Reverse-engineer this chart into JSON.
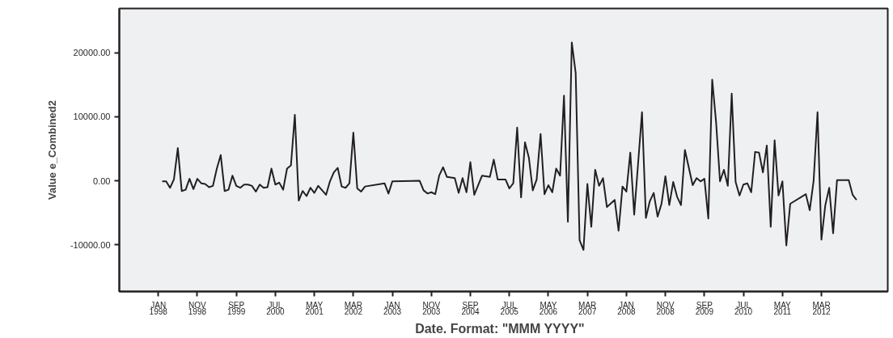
{
  "chart_data": {
    "type": "line",
    "xlabel": "Date.  Format:  \"MMM YYYY\"",
    "ylabel": "Value e_Combined2",
    "x": [
      "1998-02",
      "1998-03",
      "1998-04",
      "1998-05",
      "1998-06",
      "1998-07",
      "1998-08",
      "1998-09",
      "1998-10",
      "1998-11",
      "1998-12",
      "1999-01",
      "1999-02",
      "1999-03",
      "1999-04",
      "1999-05",
      "1999-06",
      "1999-07",
      "1999-08",
      "1999-09",
      "1999-10",
      "1999-11",
      "1999-12",
      "2000-01",
      "2000-02",
      "2000-03",
      "2000-04",
      "2000-05",
      "2000-06",
      "2000-07",
      "2000-08",
      "2000-09",
      "2000-10",
      "2000-11",
      "2000-12",
      "2001-01",
      "2001-02",
      "2001-03",
      "2001-04",
      "2001-05",
      "2001-06",
      "2001-07",
      "2001-08",
      "2001-09",
      "2001-10",
      "2001-11",
      "2001-12",
      "2002-01",
      "2002-02",
      "2002-03",
      "2002-04",
      "2002-05",
      "2002-06",
      "2002-11",
      "2002-12",
      "2003-01",
      "2003-08",
      "2003-09",
      "2003-10",
      "2003-11",
      "2003-12",
      "2004-01",
      "2004-02",
      "2004-03",
      "2004-05",
      "2004-06",
      "2004-07",
      "2004-08",
      "2004-09",
      "2004-10",
      "2004-12",
      "2005-02",
      "2005-03",
      "2005-04",
      "2005-06",
      "2005-07",
      "2005-08",
      "2005-09",
      "2005-10",
      "2005-11",
      "2005-12",
      "2006-01",
      "2006-02",
      "2006-03",
      "2006-04",
      "2006-05",
      "2006-06",
      "2006-07",
      "2006-08",
      "2006-09",
      "2006-10",
      "2006-11",
      "2006-12",
      "2007-01",
      "2007-02",
      "2007-03",
      "2007-04",
      "2007-05",
      "2007-06",
      "2007-07",
      "2007-08",
      "2007-10",
      "2007-11",
      "2007-12",
      "2008-01",
      "2008-02",
      "2008-03",
      "2008-05",
      "2008-06",
      "2008-07",
      "2008-08",
      "2008-09",
      "2008-10",
      "2008-11",
      "2008-12",
      "2009-01",
      "2009-02",
      "2009-03",
      "2009-04",
      "2009-06",
      "2009-07",
      "2009-08",
      "2009-09",
      "2009-10",
      "2009-11",
      "2009-12",
      "2010-01",
      "2010-02",
      "2010-03",
      "2010-04",
      "2010-05",
      "2010-06",
      "2010-07",
      "2010-08",
      "2010-09",
      "2010-10",
      "2010-11",
      "2010-12",
      "2011-01",
      "2011-02",
      "2011-03",
      "2011-04",
      "2011-05",
      "2011-06",
      "2011-07",
      "2011-11",
      "2011-12",
      "2012-01",
      "2012-02",
      "2012-03",
      "2012-04",
      "2012-05",
      "2012-06",
      "2012-07",
      "2012-10",
      "2012-11",
      "2012-12"
    ],
    "values": [
      -100,
      -100,
      -1100,
      200,
      5100,
      -1600,
      -1400,
      300,
      -1300,
      300,
      -400,
      -500,
      -1000,
      -800,
      1900,
      4000,
      -1600,
      -1400,
      800,
      -800,
      -1100,
      -600,
      -600,
      -800,
      -1700,
      -600,
      -1100,
      -1000,
      1900,
      -600,
      -300,
      -1400,
      1900,
      2400,
      10300,
      -3100,
      -1600,
      -2400,
      -1100,
      -1900,
      -800,
      -1500,
      -2200,
      -100,
      1300,
      2000,
      -900,
      -1100,
      -400,
      7500,
      -1200,
      -1700,
      -900,
      -400,
      -2000,
      -100,
      0,
      -1500,
      -2000,
      -1800,
      -2100,
      800,
      2100,
      600,
      400,
      -1900,
      400,
      -1800,
      2900,
      -2200,
      800,
      600,
      3300,
      200,
      200,
      -1200,
      -400,
      8300,
      -2600,
      6000,
      3600,
      -1500,
      200,
      7300,
      -2100,
      -700,
      -1800,
      1900,
      800,
      13300,
      -6400,
      21600,
      16800,
      -9300,
      -10800,
      -500,
      -7200,
      1700,
      -800,
      400,
      -4100,
      -3000,
      -7800,
      -900,
      -1700,
      4400,
      -5300,
      10700,
      -5800,
      -3200,
      -1900,
      -5600,
      -3600,
      700,
      -3800,
      -200,
      -2500,
      -3800,
      4800,
      -700,
      400,
      -100,
      300,
      -5900,
      15800,
      9100,
      -100,
      1700,
      -800,
      13600,
      -200,
      -2300,
      -600,
      -400,
      -1800,
      4500,
      4400,
      1300,
      5500,
      -7200,
      6300,
      -2300,
      -100,
      -10100,
      -3600,
      -2100,
      -4600,
      0,
      10700,
      -9200,
      -3800,
      -1100,
      -8200,
      100,
      100,
      -2200,
      -3000
    ],
    "color": "#231f20",
    "line_style": "solid",
    "marker": "none",
    "grid": false,
    "xlim": [
      "1997-03",
      "2013-08"
    ],
    "xticks": [
      {
        "value": "1998-01",
        "label": "JAN\n1998"
      },
      {
        "value": "1998-11",
        "label": "NOV\n1998"
      },
      {
        "value": "1999-09",
        "label": "SEP\n1999"
      },
      {
        "value": "2000-07",
        "label": "JUL\n2000"
      },
      {
        "value": "2001-05",
        "label": "MAY\n2001"
      },
      {
        "value": "2002-03",
        "label": "MAR\n2002"
      },
      {
        "value": "2003-01",
        "label": "JAN\n2003"
      },
      {
        "value": "2003-11",
        "label": "NOV\n2003"
      },
      {
        "value": "2004-09",
        "label": "SEP\n2004"
      },
      {
        "value": "2005-07",
        "label": "JUL\n2005"
      },
      {
        "value": "2006-05",
        "label": "MAY\n2006"
      },
      {
        "value": "2007-03",
        "label": "MAR\n2007"
      },
      {
        "value": "2008-01",
        "label": "JAN\n2008"
      },
      {
        "value": "2008-11",
        "label": "NOV\n2008"
      },
      {
        "value": "2009-09",
        "label": "SEP\n2009"
      },
      {
        "value": "2010-07",
        "label": "JUL\n2010"
      },
      {
        "value": "2011-05",
        "label": "MAY\n2011"
      },
      {
        "value": "2012-03",
        "label": "MAR\n2012"
      }
    ],
    "ylim": [
      -17300,
      26900
    ],
    "yticks": [
      {
        "value": -10000,
        "label": "-10000.00"
      },
      {
        "value": 0,
        "label": "0.00"
      },
      {
        "value": 10000,
        "label": "10000.00"
      },
      {
        "value": 20000,
        "label": "20000.00"
      }
    ]
  }
}
